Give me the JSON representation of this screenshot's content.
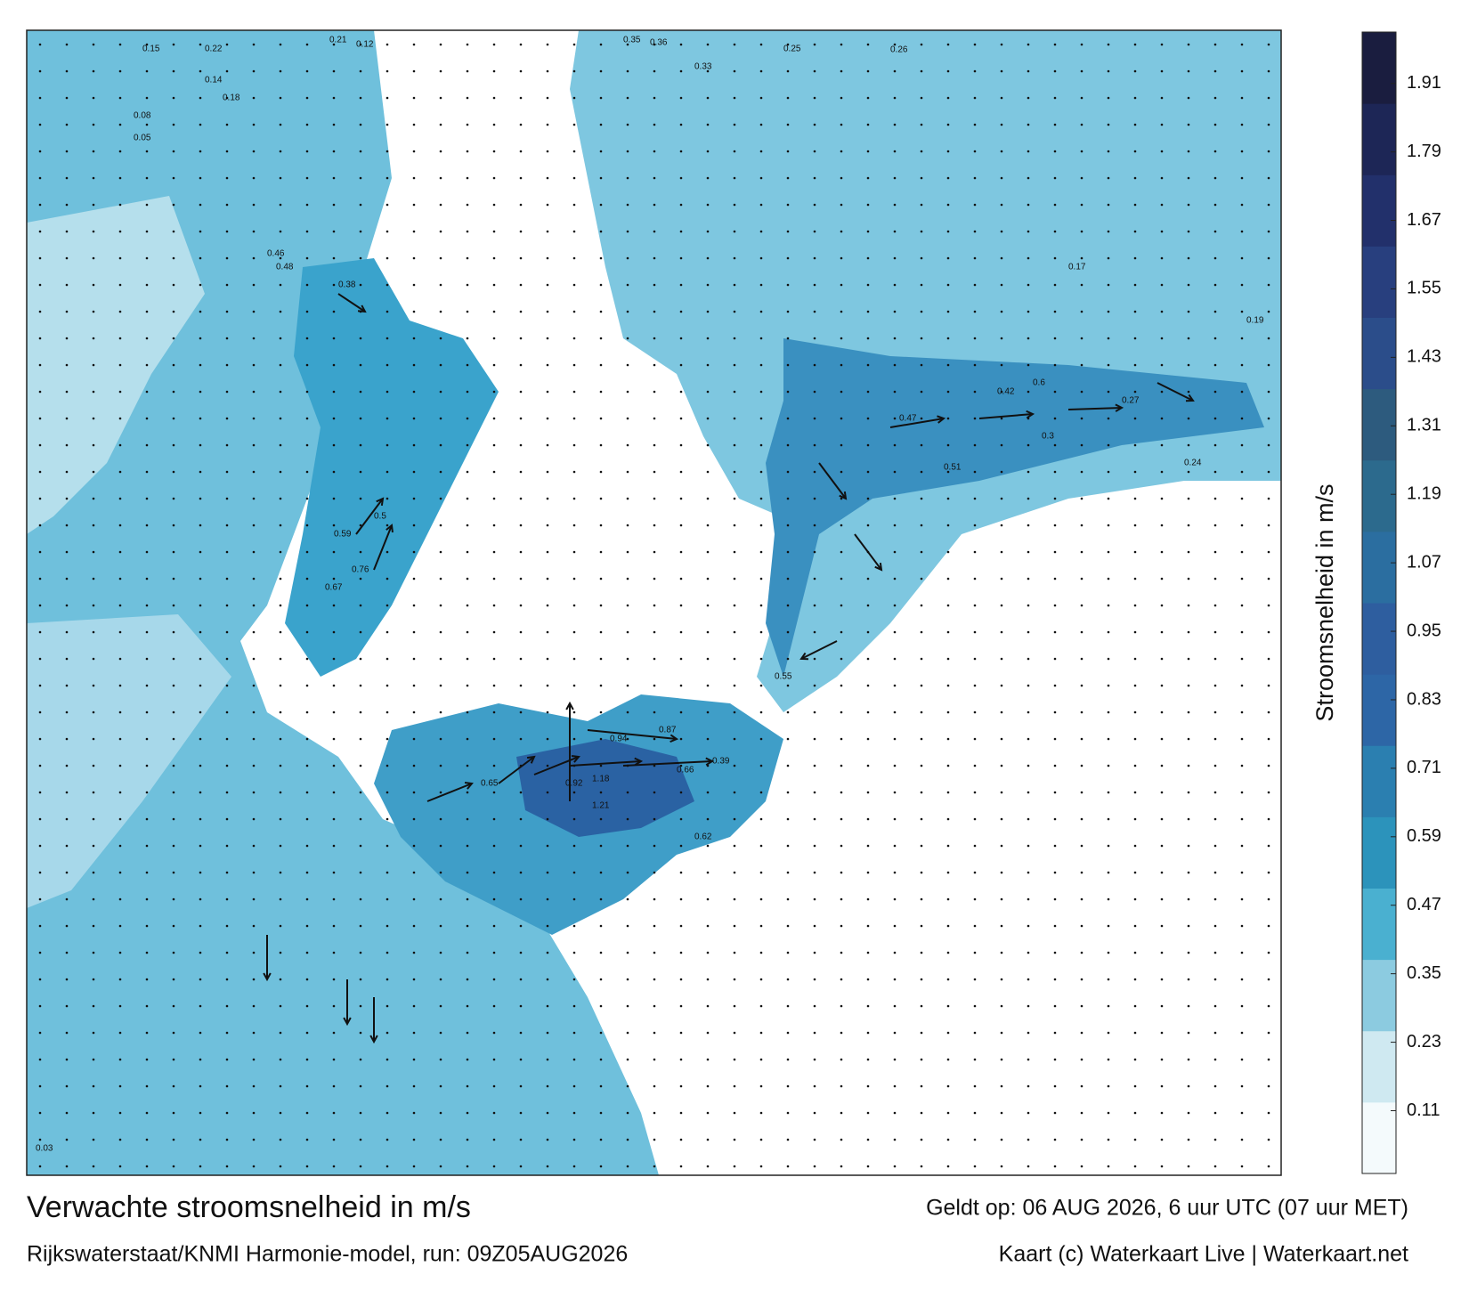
{
  "map": {
    "title": "Verwachte stroomsnelheid in m/s",
    "subtitle": "Rijkswaterstaat/KNMI Harmonie-model, run: 09Z05AUG2026",
    "valid": "Geldt op: 06 AUG 2026, 6 uur UTC (07 uur MET)",
    "credit": "Kaart (c) Waterkaart Live | Waterkaart.net",
    "colorbar": {
      "label": "Stroomsnelheid in m/s",
      "lim": [
        0,
        2
      ],
      "ticks": [
        0.11,
        0.23,
        0.35,
        0.47,
        0.59,
        0.71,
        0.83,
        0.95,
        1.07,
        1.19,
        1.31,
        1.43,
        1.55,
        1.67,
        1.79,
        1.91
      ],
      "colors": [
        "#f4fafc",
        "#cfe9f1",
        "#8ccbe0",
        "#4ab0d0",
        "#2c93bb",
        "#2b7fb0",
        "#2d66a6",
        "#2e5e9f",
        "#2b6ea0",
        "#2c6a8d",
        "#2d5b7e",
        "#2b4d8a",
        "#283f7e",
        "#22306b",
        "#1d2656",
        "#1a1d3f"
      ]
    },
    "labels": [
      "0.15",
      "0.22",
      "0.21",
      "0.12",
      "0.14",
      "0.18",
      "0.35",
      "0.36",
      "0.25",
      "0.26",
      "0.08",
      "0.05",
      "0.33",
      "0.46",
      "0.48",
      "0.38",
      "0.59",
      "0.67",
      "0.76",
      "0.5",
      "0.92",
      "1.21",
      "1.18",
      "0.94",
      "0.39",
      "0.87",
      "0.65",
      "0.62",
      "0.66",
      "0.55",
      "0.6",
      "0.51",
      "0.47",
      "0.42",
      "0.3",
      "0.27",
      "0.24",
      "0.17",
      "0.19",
      "0.03"
    ]
  }
}
